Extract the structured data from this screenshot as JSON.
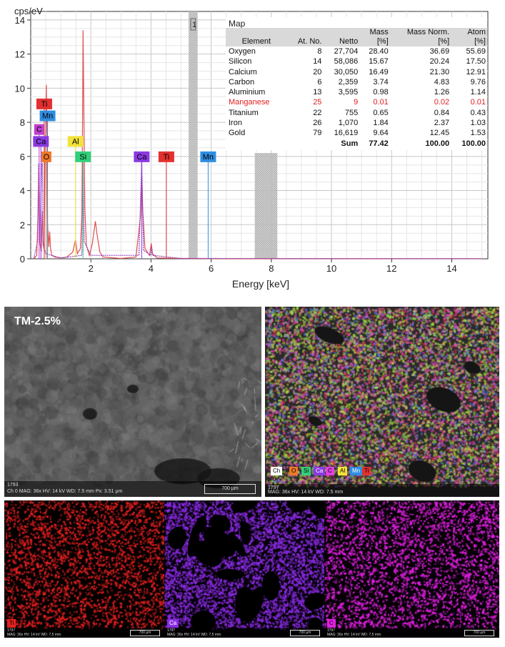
{
  "chart_data": {
    "type": "line",
    "title": "",
    "xlabel": "Energy [keV]",
    "ylabel": "cps/eV",
    "xlim": [
      0,
      15.2
    ],
    "ylim": [
      0,
      14.5
    ],
    "x_ticks": [
      "2",
      "4",
      "6",
      "8",
      "10",
      "12",
      "14"
    ],
    "y_ticks": [
      "0",
      "2",
      "4",
      "6",
      "8",
      "10",
      "12",
      "14"
    ],
    "grid": true,
    "marker_label": "1",
    "series": [
      {
        "color": "#e05050",
        "points": [
          [
            0.1,
            0
          ],
          [
            0.2,
            0.2
          ],
          [
            0.26,
            3.5
          ],
          [
            0.28,
            5.0
          ],
          [
            0.3,
            1.0
          ],
          [
            0.35,
            0.4
          ],
          [
            0.39,
            2.8
          ],
          [
            0.41,
            1.0
          ],
          [
            0.45,
            0.5
          ],
          [
            0.48,
            6.5
          ],
          [
            0.5,
            7.8
          ],
          [
            0.52,
            10.2
          ],
          [
            0.54,
            7.0
          ],
          [
            0.56,
            2.0
          ],
          [
            0.6,
            0.7
          ],
          [
            0.63,
            1.6
          ],
          [
            0.66,
            0.6
          ],
          [
            0.7,
            0.2
          ],
          [
            0.8,
            0.1
          ],
          [
            1.0,
            0.05
          ],
          [
            1.2,
            0.1
          ],
          [
            1.4,
            0.4
          ],
          [
            1.49,
            1.1
          ],
          [
            1.55,
            0.3
          ],
          [
            1.65,
            0.6
          ],
          [
            1.7,
            2.5
          ],
          [
            1.73,
            9.5
          ],
          [
            1.74,
            13.4
          ],
          [
            1.76,
            10.0
          ],
          [
            1.8,
            3.0
          ],
          [
            1.85,
            0.8
          ],
          [
            1.95,
            0.2
          ],
          [
            2.05,
            0.9
          ],
          [
            2.15,
            2.2
          ],
          [
            2.2,
            1.5
          ],
          [
            2.3,
            0.4
          ],
          [
            2.4,
            0.1
          ],
          [
            3.0,
            0.02
          ],
          [
            3.5,
            0.1
          ],
          [
            3.65,
            2.5
          ],
          [
            3.69,
            4.8
          ],
          [
            3.72,
            3.0
          ],
          [
            3.8,
            0.6
          ],
          [
            3.95,
            0.2
          ],
          [
            4.01,
            0.9
          ],
          [
            4.05,
            0.3
          ],
          [
            4.2,
            0.05
          ],
          [
            5.0,
            0.02
          ],
          [
            6.0,
            0.01
          ],
          [
            7.0,
            0.01
          ],
          [
            10.0,
            0.01
          ],
          [
            15.0,
            0.01
          ]
        ]
      },
      {
        "color": "#9040c0",
        "points": [
          [
            0.1,
            0
          ],
          [
            0.23,
            1.0
          ],
          [
            0.26,
            5.5
          ],
          [
            0.28,
            5.6
          ],
          [
            0.3,
            1.0
          ],
          [
            0.37,
            5.6
          ],
          [
            0.39,
            5.6
          ],
          [
            0.41,
            0.8
          ],
          [
            0.5,
            0.3
          ],
          [
            1.0,
            0.05
          ],
          [
            1.7,
            0.2
          ],
          [
            1.74,
            5.8
          ],
          [
            1.78,
            1.0
          ],
          [
            2.0,
            0.2
          ],
          [
            3.6,
            0.2
          ],
          [
            3.69,
            5.8
          ],
          [
            3.75,
            0.5
          ],
          [
            4.0,
            0.2
          ],
          [
            4.01,
            0.7
          ],
          [
            4.05,
            0.2
          ],
          [
            5.0,
            0.02
          ],
          [
            15.0,
            0.01
          ]
        ]
      }
    ],
    "element_lines": [
      {
        "label": "Ti",
        "x": 0.45,
        "height": 9.1,
        "color": "#e23030"
      },
      {
        "label": "Mn",
        "x": 0.56,
        "height": 8.4,
        "color": "#2f8de0"
      },
      {
        "label": "C",
        "x": 0.28,
        "height": 7.6,
        "color": "#c040d0"
      },
      {
        "label": "Ca",
        "x": 0.34,
        "height": 6.9,
        "color": "#8a3ae0"
      },
      {
        "label": "O",
        "x": 0.52,
        "height": 6.0,
        "color": "#f07828"
      },
      {
        "label": "Al",
        "x": 1.49,
        "height": 6.9,
        "color": "#f2e23a"
      },
      {
        "label": "Si",
        "x": 1.74,
        "height": 6.0,
        "color": "#32d07a"
      },
      {
        "label": "Ca",
        "x": 3.69,
        "height": 6.0,
        "color": "#8a3ae0"
      },
      {
        "label": "Ti",
        "x": 4.51,
        "height": 6.0,
        "color": "#e23030"
      },
      {
        "label": "Mn",
        "x": 5.9,
        "height": 6.0,
        "color": "#2f8de0"
      }
    ],
    "table": {
      "title": "Map",
      "headers": [
        {
          "top": "",
          "bottom": "Element"
        },
        {
          "top": "",
          "bottom": "At. No."
        },
        {
          "top": "",
          "bottom": "Netto"
        },
        {
          "top": "Mass",
          "bottom": "[%]"
        },
        {
          "top": "Mass Norm.",
          "bottom": "[%]"
        },
        {
          "top": "Atom",
          "bottom": "[%]"
        }
      ],
      "rows": [
        {
          "element": "Oxygen",
          "at_no": "8",
          "netto": "27,704",
          "mass": "28.40",
          "norm": "36.69",
          "atom": "55.69",
          "warn": false
        },
        {
          "element": "Silicon",
          "at_no": "14",
          "netto": "58,086",
          "mass": "15.67",
          "norm": "20.24",
          "atom": "17.50",
          "warn": false
        },
        {
          "element": "Calcium",
          "at_no": "20",
          "netto": "30,050",
          "mass": "16.49",
          "norm": "21.30",
          "atom": "12.91",
          "warn": false
        },
        {
          "element": "Carbon",
          "at_no": "6",
          "netto": "2,359",
          "mass": "3.74",
          "norm": "4.83",
          "atom": "9.76",
          "warn": false
        },
        {
          "element": "Aluminium",
          "at_no": "13",
          "netto": "3,595",
          "mass": "0.98",
          "norm": "1.26",
          "atom": "1.14",
          "warn": false
        },
        {
          "element": "Manganese",
          "at_no": "25",
          "netto": "9",
          "mass": "0.01",
          "norm": "0.02",
          "atom": "0.01",
          "warn": true
        },
        {
          "element": "Titanium",
          "at_no": "22",
          "netto": "755",
          "mass": "0.65",
          "norm": "0.84",
          "atom": "0.43",
          "warn": false
        },
        {
          "element": "Iron",
          "at_no": "26",
          "netto": "1,070",
          "mass": "1.84",
          "norm": "2.37",
          "atom": "1.03",
          "warn": false
        },
        {
          "element": "Gold",
          "at_no": "79",
          "netto": "16,619",
          "mass": "9.64",
          "norm": "12.45",
          "atom": "1.53",
          "warn": false
        }
      ],
      "sum": {
        "label": "Sum",
        "mass": "77.42",
        "norm": "100.00",
        "atom": "100.00"
      }
    }
  },
  "sem": {
    "label": "TM-2.5%",
    "footer_line1": "1793",
    "footer_line2": "Ch 0   MAG: 36x   HV: 14 kV   WD: 7.5 mm   Px: 3.51 μm",
    "scale": "700 μm"
  },
  "overlay": {
    "footer_line1": "1797",
    "footer_line2": "MAG: 36x   HV: 14 kV   WD: 7.5 mm",
    "legend": [
      {
        "label": "Ch 0",
        "color": "#ffffff",
        "text": "#000000"
      },
      {
        "label": "O",
        "color": "#f07828",
        "text": "#000000"
      },
      {
        "label": "Si",
        "color": "#32d07a",
        "text": "#000000"
      },
      {
        "label": "Ca",
        "color": "#8a3ae0",
        "text": "#ffffff"
      },
      {
        "label": "C",
        "color": "#e040e0",
        "text": "#000000"
      },
      {
        "label": "Al",
        "color": "#f2e23a",
        "text": "#000000"
      },
      {
        "label": "Mn",
        "color": "#2f8de0",
        "text": "#ffffff"
      },
      {
        "label": "Ti",
        "color": "#e23030",
        "text": "#000000"
      }
    ]
  },
  "maps": [
    {
      "label": "Ti",
      "color": "#e52020",
      "density": 0.42
    },
    {
      "label": "Ca",
      "color": "#8a2be2",
      "density": 0.75
    },
    {
      "label": "C",
      "color": "#e020e0",
      "density": 0.45
    }
  ],
  "maps_footer_line1": "1797",
  "maps_footer_line2": "MAG: 36x   HV: 14 kV   WD: 7.5 mm",
  "maps_scale": "700 μm"
}
